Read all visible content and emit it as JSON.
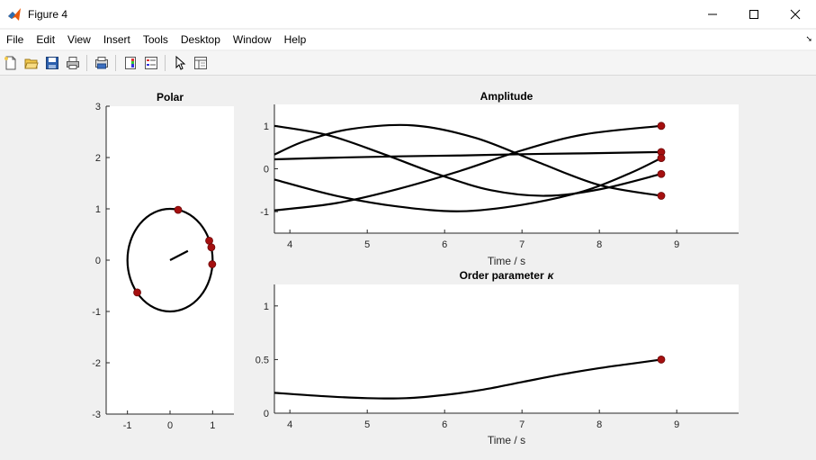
{
  "window": {
    "title": "Figure 4",
    "accent": "#e8590c"
  },
  "menu": [
    "File",
    "Edit",
    "View",
    "Insert",
    "Tools",
    "Desktop",
    "Window",
    "Help"
  ],
  "toolbar": {
    "icons": [
      "new-figure-icon",
      "open-file-icon",
      "save-icon",
      "print-icon",
      "print-preview-icon",
      "colorbar-icon",
      "legend-icon",
      "edit-plot-arrow-icon",
      "property-editor-icon"
    ]
  },
  "chart_data": [
    {
      "type": "scatter",
      "title": "Polar",
      "xlim": [
        -1.5,
        1.5
      ],
      "ylim": [
        -3,
        3
      ],
      "xticks": [
        -1,
        0,
        1
      ],
      "yticks": [
        -3,
        -2,
        -1,
        0,
        1,
        2,
        3
      ],
      "circle": {
        "center": [
          0,
          0
        ],
        "radius": 1
      },
      "order_vector": {
        "from": [
          0,
          0
        ],
        "to": [
          0.42,
          0.18
        ]
      },
      "points": [
        {
          "x": 0.19,
          "y": 0.98
        },
        {
          "x": 0.92,
          "y": 0.38
        },
        {
          "x": 0.97,
          "y": 0.25
        },
        {
          "x": 0.99,
          "y": -0.08
        },
        {
          "x": -0.77,
          "y": -0.63
        }
      ],
      "line_color": "#000000",
      "marker_color": "#a50f0f"
    },
    {
      "type": "line",
      "title": "Amplitude",
      "xlabel": "Time / s",
      "xlim": [
        3.8,
        9.8
      ],
      "ylim": [
        -1.5,
        1.5
      ],
      "xticks": [
        4,
        5,
        6,
        7,
        8,
        9
      ],
      "yticks": [
        -1,
        0,
        1
      ],
      "series": [
        {
          "x": [
            3.8,
            4.5,
            5.2,
            5.9,
            6.6,
            7.3,
            8.0,
            8.8
          ],
          "values": [
            1.0,
            0.78,
            0.35,
            -0.12,
            -0.5,
            -0.63,
            -0.48,
            -0.12
          ]
        },
        {
          "x": [
            3.8,
            4.2,
            4.8,
            5.6,
            6.4,
            7.2,
            8.0,
            8.8
          ],
          "values": [
            0.33,
            0.65,
            0.93,
            1.01,
            0.72,
            0.16,
            -0.38,
            -0.63
          ]
        },
        {
          "x": [
            3.8,
            4.6,
            5.4,
            6.2,
            7.0,
            7.8,
            8.8
          ],
          "values": [
            0.22,
            0.26,
            0.29,
            0.31,
            0.34,
            0.36,
            0.39
          ]
        },
        {
          "x": [
            3.8,
            4.6,
            5.4,
            6.2,
            7.0,
            7.8,
            8.4,
            8.8
          ],
          "values": [
            -0.25,
            -0.63,
            -0.88,
            -0.99,
            -0.84,
            -0.52,
            -0.1,
            0.25
          ]
        },
        {
          "x": [
            3.8,
            4.6,
            5.4,
            6.2,
            7.0,
            7.8,
            8.8
          ],
          "values": [
            -0.97,
            -0.8,
            -0.47,
            -0.05,
            0.43,
            0.8,
            1.0
          ]
        }
      ],
      "end_points": [
        {
          "x": 8.8,
          "y": 1.0
        },
        {
          "x": 8.8,
          "y": 0.39
        },
        {
          "x": 8.8,
          "y": 0.25
        },
        {
          "x": 8.8,
          "y": -0.12
        },
        {
          "x": 8.8,
          "y": -0.63
        }
      ],
      "line_color": "#000000",
      "marker_color": "#a50f0f"
    },
    {
      "type": "line",
      "title": "Order parameter",
      "title_symbol": "κ",
      "xlabel": "Time / s",
      "xlim": [
        3.8,
        9.8
      ],
      "ylim": [
        0,
        1.2
      ],
      "xticks": [
        4,
        5,
        6,
        7,
        8,
        9
      ],
      "yticks": [
        0,
        0.5,
        1
      ],
      "series": [
        {
          "x": [
            3.8,
            4.4,
            5.0,
            5.5,
            6.0,
            6.5,
            7.0,
            7.5,
            8.0,
            8.4,
            8.8
          ],
          "values": [
            0.19,
            0.16,
            0.14,
            0.14,
            0.17,
            0.22,
            0.29,
            0.36,
            0.42,
            0.46,
            0.5
          ]
        }
      ],
      "end_points": [
        {
          "x": 8.8,
          "y": 0.5
        }
      ],
      "line_color": "#000000",
      "marker_color": "#a50f0f"
    }
  ]
}
